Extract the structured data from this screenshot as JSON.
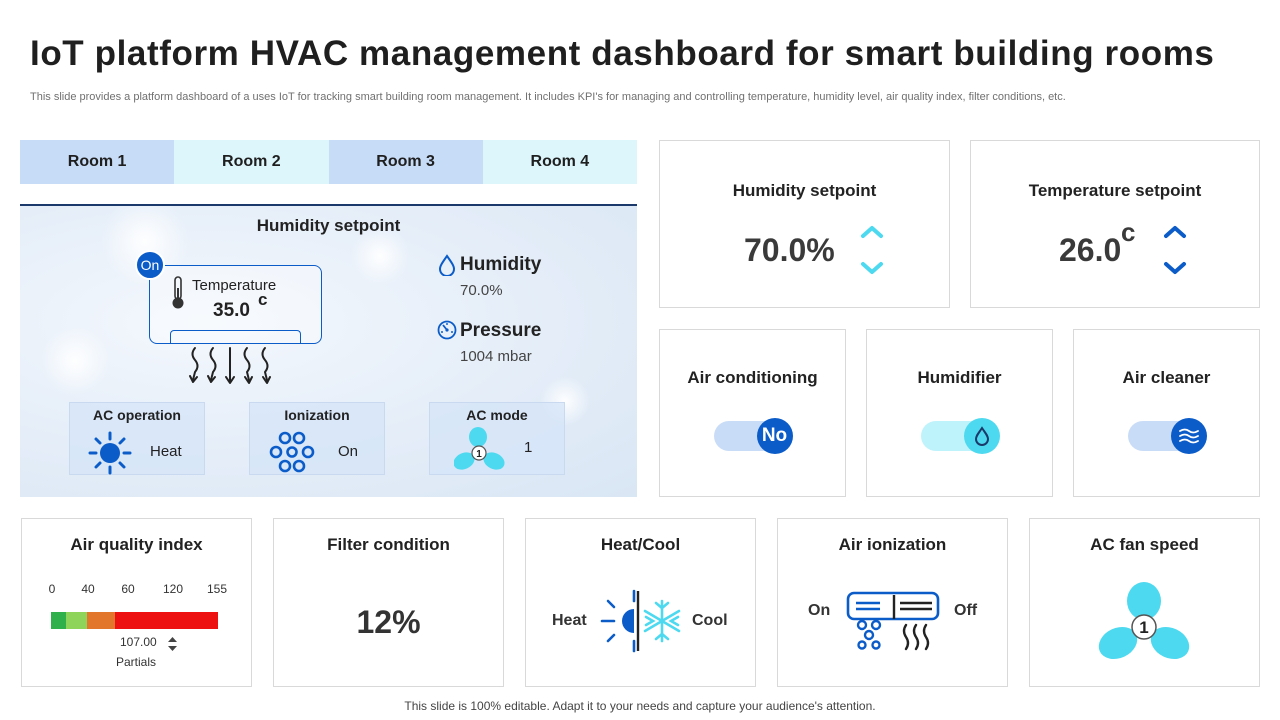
{
  "page": {
    "title": "IoT platform HVAC management dashboard for smart building rooms",
    "subtitle": "This slide provides a platform dashboard of a uses IoT for tracking smart building room management. It includes KPI's for managing and controlling temperature, humidity level, air quality index, filter conditions, etc.",
    "footer": "This slide is 100% editable. Adapt it to your needs and capture your audience's attention."
  },
  "rooms": [
    "Room 1",
    "Room 2",
    "Room 3",
    "Room 4"
  ],
  "room_panel": {
    "title": "Humidity setpoint",
    "status": "On",
    "temperature_label": "Temperature",
    "temperature_value": "35.0",
    "temperature_unit": "c",
    "humidity_label": "Humidity",
    "humidity_value": "70.0%",
    "pressure_label": "Pressure",
    "pressure_value": "1004 mbar",
    "ac_operation_label": "AC operation",
    "ac_operation_value": "Heat",
    "ionization_label": "Ionization",
    "ionization_value": "On",
    "ac_mode_label": "AC mode",
    "ac_mode_value": "1"
  },
  "humidity_setpoint": {
    "title": "Humidity setpoint",
    "value": "70.0%"
  },
  "temperature_setpoint": {
    "title": "Temperature setpoint",
    "value": "26.0",
    "unit": "c"
  },
  "air_conditioning": {
    "title": "Air conditioning",
    "state": "No"
  },
  "humidifier": {
    "title": "Humidifier"
  },
  "air_cleaner": {
    "title": "Air cleaner"
  },
  "air_quality": {
    "title": "Air quality index",
    "ticks": [
      "0",
      "40",
      "60",
      "120",
      "155"
    ],
    "value": "107.00",
    "sub_label": "Partials"
  },
  "filter_condition": {
    "title": "Filter condition",
    "value": "12%"
  },
  "heat_cool": {
    "title": "Heat/Cool",
    "heat_label": "Heat",
    "cool_label": "Cool"
  },
  "air_ionization": {
    "title": "Air ionization",
    "on_label": "On",
    "off_label": "Off"
  },
  "ac_fan_speed": {
    "title": "AC fan speed",
    "speed": "1"
  },
  "colors": {
    "primary_blue": "#0b5cc9",
    "cyan": "#4dd9ef",
    "aqi_green": "#2fb04a",
    "aqi_light_green": "#8fd45a",
    "aqi_orange": "#e2772b",
    "aqi_red": "#ee1111"
  }
}
